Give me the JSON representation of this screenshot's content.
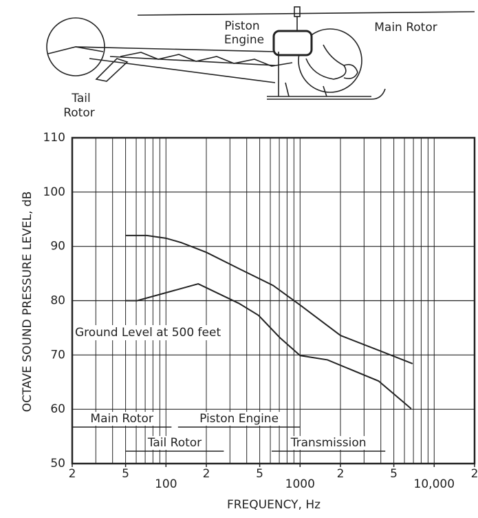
{
  "illustration": {
    "labels": [
      "Piston",
      "Engine",
      "Main Rotor",
      "Tail",
      "Rotor"
    ]
  },
  "chart_data": {
    "type": "line",
    "xlabel": "FREQUENCY, Hz",
    "ylabel": "OCTAVE SOUND PRESSURE LEVEL, dB",
    "xscale": "log",
    "xlim": [
      20,
      20000
    ],
    "ylim": [
      50,
      110
    ],
    "xticks": [
      {
        "value": 20,
        "label": "2"
      },
      {
        "value": 50,
        "label": "5"
      },
      100,
      {
        "value": 200,
        "label": "2"
      },
      {
        "value": 500,
        "label": "5"
      },
      1000,
      {
        "value": 2000,
        "label": "2"
      },
      {
        "value": 5000,
        "label": "5"
      },
      {
        "value": 10000,
        "label": "10,000"
      },
      {
        "value": 20000,
        "label": "2"
      }
    ],
    "xgrid": [
      30,
      40,
      50,
      60,
      70,
      80,
      90,
      100,
      200,
      300,
      400,
      500,
      600,
      700,
      800,
      900,
      1000,
      2000,
      3000,
      4000,
      5000,
      6000,
      7000,
      8000,
      9000,
      10000
    ],
    "yticks": [
      50,
      60,
      70,
      80,
      90,
      100,
      110
    ],
    "grid": true,
    "series": [
      {
        "color": "#222222",
        "x": [
          50,
          72,
          100,
          130,
          200,
          350,
          630,
          1000,
          2000,
          4000,
          6900
        ],
        "values": [
          92,
          92,
          91.5,
          90.7,
          88.9,
          85.9,
          82.8,
          79.2,
          73.6,
          70.7,
          68.4
        ]
      },
      {
        "color": "#222222",
        "x": [
          50,
          61,
          174,
          350,
          490,
          706,
          1000,
          1600,
          3850,
          6740
        ],
        "values": [
          80,
          80,
          83.1,
          79.5,
          77.3,
          73.2,
          69.9,
          69.1,
          65.2,
          60.1
        ]
      }
    ],
    "annotations": [
      "Ground Level at 500 feet"
    ],
    "ranges": [
      {
        "label": "Main Rotor",
        "from": 20,
        "to": 110,
        "row": 0
      },
      {
        "label": "Piston Engine",
        "from": 123,
        "to": 1000,
        "row": 0
      },
      {
        "label": "Tail Rotor",
        "from": 50,
        "to": 270,
        "row": 1
      },
      {
        "label": "Transmission",
        "from": 614,
        "to": 4320,
        "row": 1
      }
    ]
  }
}
